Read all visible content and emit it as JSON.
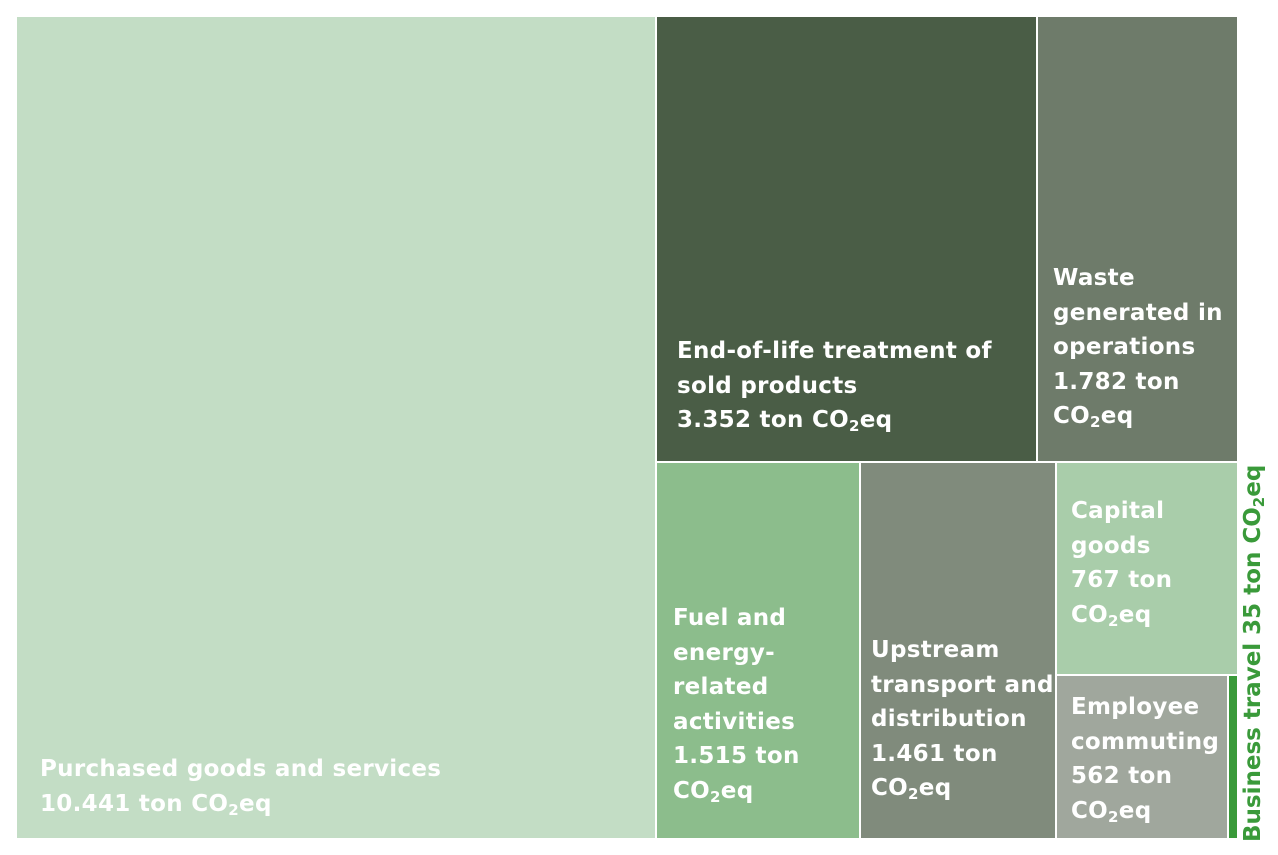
{
  "chart_data": {
    "type": "treemap",
    "unit": "ton CO2eq",
    "items": [
      {
        "key": "purchased",
        "lines": [
          "Purchased goods and services"
        ],
        "value_text": "10.441 ton CO2eq",
        "value": 10441,
        "color": "#c3ddc5"
      },
      {
        "key": "eol",
        "lines": [
          "End-of-life treatment of",
          "sold products"
        ],
        "value_text": "3.352 ton CO2eq",
        "value": 3352,
        "color": "#4a5d46"
      },
      {
        "key": "waste",
        "lines": [
          "Waste",
          "generated in",
          "operations",
          "1.782 ton"
        ],
        "value_text": "CO2eq",
        "value": 1782,
        "color": "#6e7b6a"
      },
      {
        "key": "fuel",
        "lines": [
          "Fuel and",
          "energy-",
          "related",
          "activities",
          "1.515 ton"
        ],
        "value_text": "CO2eq",
        "value": 1515,
        "color": "#8cbd8c"
      },
      {
        "key": "upstream",
        "lines": [
          "Upstream",
          "transport and",
          "distribution",
          "1.461 ton"
        ],
        "value_text": "CO2eq",
        "value": 1461,
        "color": "#808b7c"
      },
      {
        "key": "capital",
        "lines": [
          "Capital",
          "goods",
          "767 ton"
        ],
        "value_text": "CO2eq",
        "value": 767,
        "color": "#a9cdaa"
      },
      {
        "key": "commuting",
        "lines": [
          "Employee",
          "commuting",
          "562 ton"
        ],
        "value_text": "CO2eq",
        "value": 562,
        "color": "#a0a79d"
      },
      {
        "key": "travel",
        "lines": [],
        "value_text": "Business travel 35 ton CO2eq",
        "value": 35,
        "color": "#3a9a3a"
      }
    ]
  }
}
